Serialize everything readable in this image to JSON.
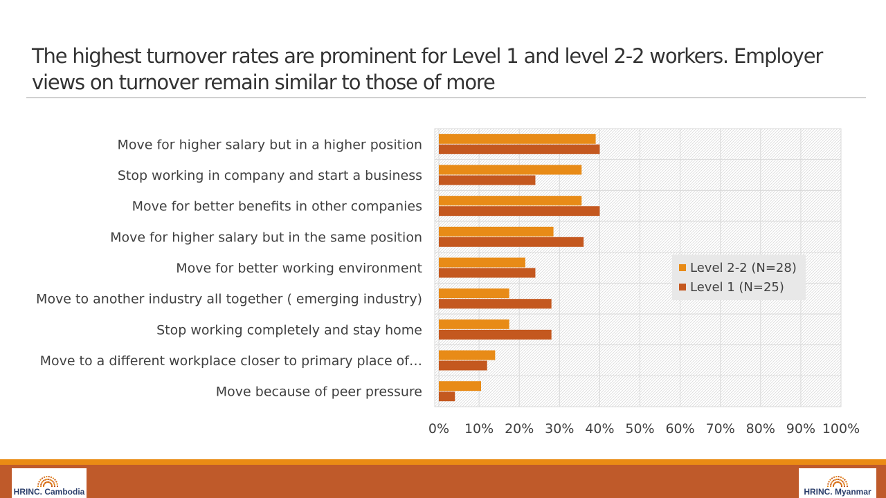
{
  "slide": {
    "title": "The highest turnover rates are prominent for Level 1 and level 2-2 workers. Employer views on turnover remain similar to those of more"
  },
  "colors": {
    "level22": "#e88b17",
    "level1": "#c4581f",
    "footer_top": "#ea8b14",
    "footer": "#bf5a2a"
  },
  "chart_data": {
    "type": "bar",
    "orientation": "horizontal",
    "categories": [
      "Move for higher salary but in a higher position",
      "Stop working in company and start a business",
      "Move for better benefits in other companies",
      "Move for higher salary but in the same position",
      "Move for better working environment",
      "Move to another industry all together ( emerging industry)",
      "Stop working completely and stay home",
      "Move to a different workplace closer to primary place of…",
      "Move because of peer pressure"
    ],
    "series": [
      {
        "name": "Level 2-2 (N=28)",
        "color": "#e88b17",
        "values": [
          39,
          35.5,
          35.5,
          28.5,
          21.5,
          17.5,
          17.5,
          14,
          10.5
        ]
      },
      {
        "name": "Level 1 (N=25)",
        "color": "#c4581f",
        "values": [
          40,
          24,
          40,
          36,
          24,
          28,
          28,
          12,
          4
        ]
      }
    ],
    "xlim": [
      0,
      100
    ],
    "ticks": [
      "0%",
      "10%",
      "20%",
      "30%",
      "40%",
      "50%",
      "60%",
      "70%",
      "80%",
      "90%",
      "100%"
    ],
    "grid": true,
    "legend": "right"
  },
  "footer": {
    "left_logo_text": "HRINC. Cambodia",
    "right_logo_text": "HRINC. Myanmar"
  }
}
